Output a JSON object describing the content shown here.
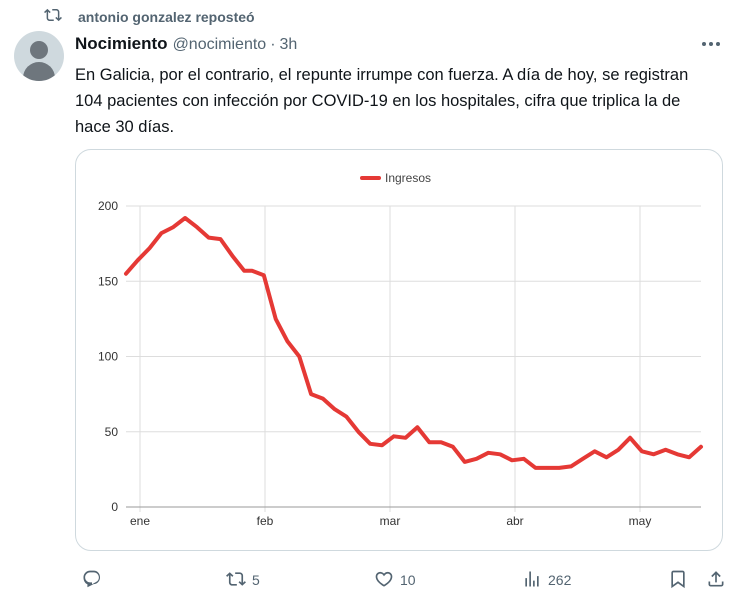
{
  "repost": {
    "text": "antonio gonzalez reposteó",
    "icon": "repost-icon"
  },
  "tweet": {
    "author_name": "Nocimiento",
    "handle": "@nocimiento",
    "separator": "·",
    "time": "3h",
    "text": "En Galicia, por el contrario, el repunte irrumpe con fuerza. A día de hoy, se registran 104 pacientes con infección por COVID-19 en los hospitales, cifra que triplica la de hace 30 días."
  },
  "actions": {
    "reply": {
      "icon": "reply-icon",
      "count": ""
    },
    "repost": {
      "icon": "repost-icon",
      "count": "5"
    },
    "like": {
      "icon": "heart-icon",
      "count": "10"
    },
    "views": {
      "icon": "views-chart-icon",
      "count": "262"
    },
    "bookmark": {
      "icon": "bookmark-icon"
    },
    "share": {
      "icon": "share-icon"
    }
  },
  "colors": {
    "line": "#e53935",
    "text": "#0f1419",
    "muted": "#536471"
  },
  "chart_data": {
    "type": "line",
    "legend": "top-center",
    "grid": true,
    "x_ticks": [
      "ene",
      "feb",
      "mar",
      "abr",
      "may"
    ],
    "y_ticks": [
      0,
      50,
      100,
      150,
      200
    ],
    "ylim": [
      0,
      200
    ],
    "series": [
      {
        "name": "Ingresos",
        "color": "#e53935",
        "x": [
          0,
          3,
          6,
          9,
          12,
          15,
          18,
          21,
          24,
          27,
          30,
          32,
          35,
          38,
          41,
          44,
          47,
          50,
          53,
          56,
          59,
          62,
          65,
          68,
          71,
          74,
          77,
          80,
          83,
          86,
          89,
          92,
          95,
          98,
          101,
          104,
          107,
          110,
          113,
          116,
          119,
          122,
          125,
          128,
          131,
          134,
          137,
          140,
          143,
          146
        ],
        "values": [
          155,
          164,
          172,
          182,
          186,
          192,
          186,
          179,
          178,
          167,
          157,
          157,
          154,
          125,
          110,
          100,
          75,
          72,
          65,
          60,
          50,
          42,
          41,
          47,
          46,
          53,
          43,
          43,
          40,
          30,
          32,
          36,
          35,
          31,
          32,
          26,
          26,
          26,
          27,
          32,
          37,
          33,
          38,
          46,
          37,
          35,
          38,
          35,
          33,
          40
        ]
      }
    ]
  }
}
